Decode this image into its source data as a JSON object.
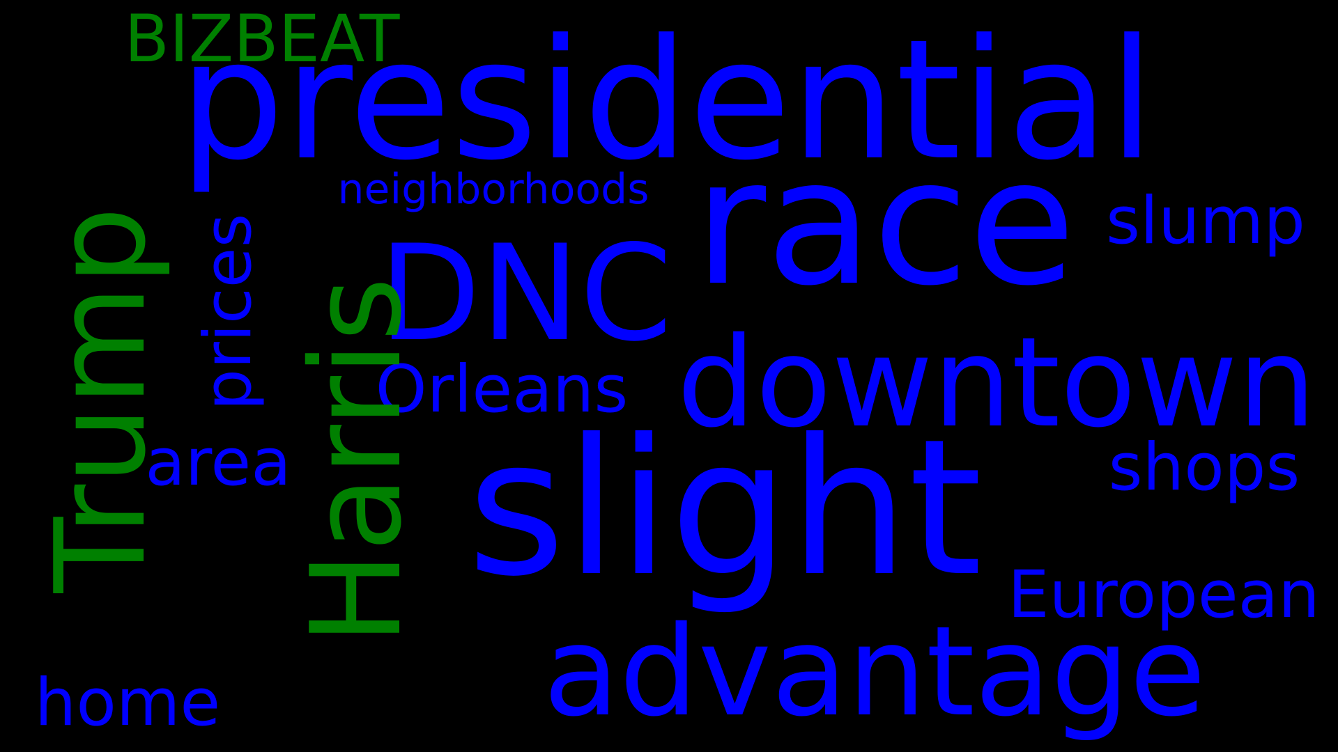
{
  "colors": {
    "background": "#000000",
    "blue": "#0000FF",
    "green": "#008000"
  },
  "words": {
    "presidential": "presidential",
    "slight": "slight",
    "race": "race",
    "advantage": "advantage",
    "downtown": "downtown",
    "dnc": "DNC",
    "harris": "Harris",
    "trump": "Trump",
    "bizbeat": "BIZBEAT",
    "orleans": "Orleans",
    "european": "European",
    "shops": "shops",
    "slump": "slump",
    "prices": "prices",
    "area": "area",
    "home": "home",
    "neighborhoods": "neighborhoods"
  }
}
